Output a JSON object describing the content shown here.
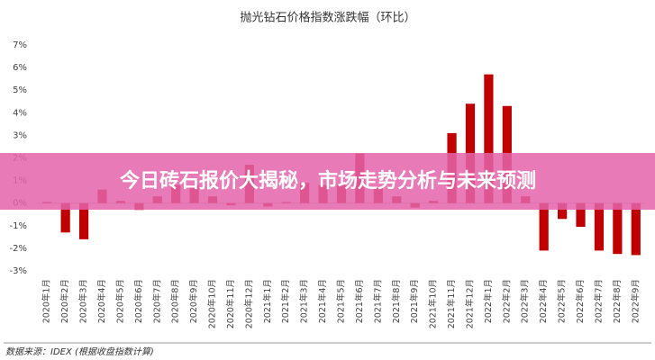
{
  "chart_data": {
    "type": "bar",
    "title": "抛光钻石价格指数涨跌幅（环比）",
    "categories": [
      "2020年1月",
      "2020年2月",
      "2020年3月",
      "2020年4月",
      "2020年5月",
      "2020年6月",
      "2020年7月",
      "2020年8月",
      "2020年9月",
      "2020年10月",
      "2020年11月",
      "2020年12月",
      "2021年1月",
      "2021年2月",
      "2021年3月",
      "2021年4月",
      "2021年5月",
      "2021年6月",
      "2021年7月",
      "2021年8月",
      "2021年9月",
      "2021年10月",
      "2021年11月",
      "2021年12月",
      "2022年1月",
      "2022年2月",
      "2022年3月",
      "2022年4月",
      "2022年5月",
      "2022年6月",
      "2022年7月",
      "2022年8月",
      "2022年9月"
    ],
    "values": [
      0.05,
      -1.3,
      -1.6,
      0.6,
      0.1,
      -0.3,
      0.3,
      0.8,
      0.8,
      0.3,
      -0.1,
      1.7,
      -0.15,
      0.05,
      0.9,
      0.8,
      0.8,
      2.2,
      0.7,
      0.3,
      -0.2,
      0.1,
      3.1,
      4.4,
      5.7,
      4.3,
      0.3,
      -2.1,
      -0.7,
      -1.05,
      -2.1,
      -2.25,
      -2.3
    ],
    "color": "#c00000",
    "ylim": [
      -3,
      7
    ],
    "yticks": [
      {
        "value": -3,
        "label": "-3%"
      },
      {
        "value": -2,
        "label": "-2%"
      },
      {
        "value": -1,
        "label": "-1%"
      },
      {
        "value": 0,
        "label": "0%"
      },
      {
        "value": 1,
        "label": "1%"
      },
      {
        "value": 2,
        "label": "2%"
      },
      {
        "value": 3,
        "label": "3%"
      },
      {
        "value": 4,
        "label": "4%"
      },
      {
        "value": 5,
        "label": "5%"
      },
      {
        "value": 6,
        "label": "6%"
      },
      {
        "value": 7,
        "label": "7%"
      }
    ],
    "grid": false,
    "source": "数据来源：IDEX (根据收盘指数计算)"
  },
  "banner": {
    "text": "今日砖石报价大揭秘，市场走势分析与未来预测"
  }
}
